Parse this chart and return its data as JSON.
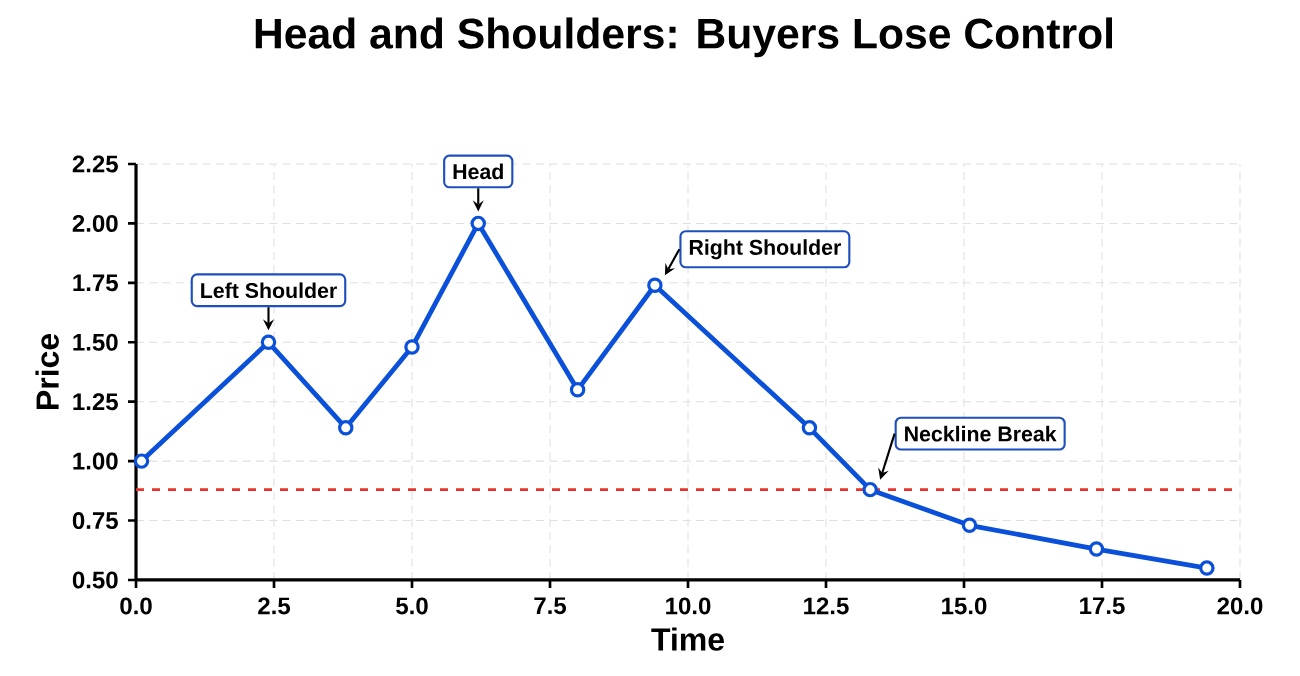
{
  "chart_data": {
    "type": "line",
    "title": "Head and Shoulders: Buyers Lose Control",
    "xlabel": "Time",
    "ylabel": "Price",
    "x": [
      0.1,
      2.4,
      3.8,
      5.0,
      6.2,
      8.0,
      9.4,
      12.2,
      13.3,
      15.1,
      17.4,
      19.4
    ],
    "series": [
      {
        "color": "#0b50d8",
        "values": [
          1.0,
          1.5,
          1.14,
          1.48,
          2.0,
          1.3,
          1.74,
          1.14,
          0.88,
          0.73,
          0.63,
          0.55
        ]
      }
    ],
    "xlim": [
      0,
      20
    ],
    "ylim": [
      0.5,
      2.25
    ],
    "xticks": [
      {
        "value": 0,
        "label": "0.0"
      },
      {
        "value": 2.5,
        "label": "2.5"
      },
      {
        "value": 5,
        "label": "5.0"
      },
      {
        "value": 7.5,
        "label": "7.5"
      },
      {
        "value": 10,
        "label": "10.0"
      },
      {
        "value": 12.5,
        "label": "12.5"
      },
      {
        "value": 15,
        "label": "15.0"
      },
      {
        "value": 17.5,
        "label": "17.5"
      },
      {
        "value": 20,
        "label": "20.0"
      }
    ],
    "yticks": [
      {
        "value": 0.5,
        "label": "0.50"
      },
      {
        "value": 0.75,
        "label": "0.75"
      },
      {
        "value": 1,
        "label": "1.00"
      },
      {
        "value": 1.25,
        "label": "1.25"
      },
      {
        "value": 1.5,
        "label": "1.50"
      },
      {
        "value": 1.75,
        "label": "1.75"
      },
      {
        "value": 2,
        "label": "2.00"
      },
      {
        "value": 2.25,
        "label": "2.25"
      }
    ],
    "ref_lines": [
      {
        "axis": "y",
        "value": 0.88,
        "color": "#e8322e",
        "line_style": "dashed"
      }
    ],
    "annotations": [
      {
        "text": "Left Shoulder",
        "x": 2.4,
        "y": 1.5
      },
      {
        "text": "Head",
        "x": 6.2,
        "y": 2.0
      },
      {
        "text": "Right Shoulder",
        "x": 9.4,
        "y": 1.74
      },
      {
        "text": "Neckline Break",
        "x": 13.3,
        "y": 0.88
      }
    ],
    "grid": true,
    "marker": "circle",
    "line_style": "solid"
  }
}
